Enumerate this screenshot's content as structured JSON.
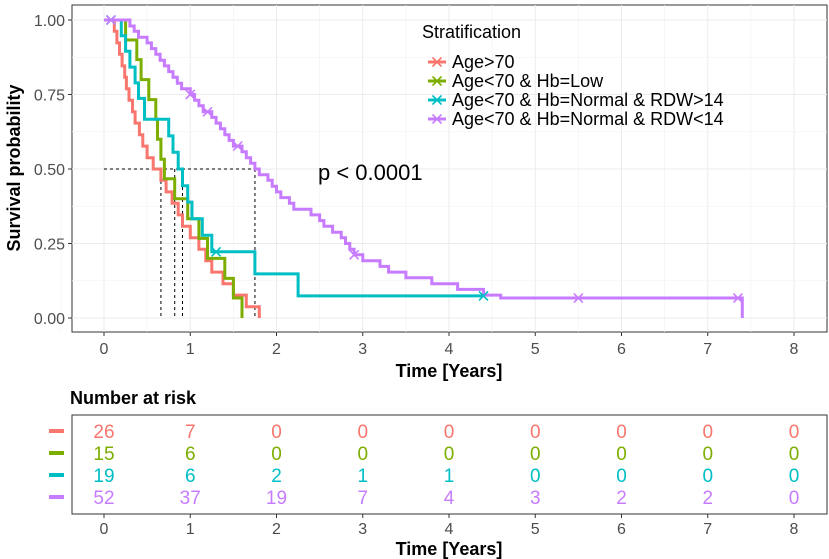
{
  "chart_data": [
    {
      "type": "line",
      "subtype": "kaplan-meier",
      "title": "",
      "xlabel": "Time [Years]",
      "ylabel": "Survival probability",
      "xlim": [
        -0.3,
        8.4
      ],
      "ylim": [
        -0.05,
        1.05
      ],
      "x_ticks": [
        "0",
        "1",
        "2",
        "3",
        "4",
        "5",
        "6",
        "7",
        "8"
      ],
      "y_ticks": [
        "0.00",
        "0.25",
        "0.50",
        "0.75",
        "1.00"
      ],
      "grid": true,
      "legend_title": "Stratification",
      "legend_position": "top-right",
      "annotation": "p < 0.0001",
      "median_line_y": 0.5,
      "median_times": [
        0.66,
        0.82,
        0.91,
        1.75
      ],
      "series": [
        {
          "name": "Age>70",
          "color": "#F8766D",
          "steps": [
            [
              0,
              1.0
            ],
            [
              0.12,
              0.962
            ],
            [
              0.15,
              0.923
            ],
            [
              0.18,
              0.885
            ],
            [
              0.21,
              0.846
            ],
            [
              0.24,
              0.808
            ],
            [
              0.26,
              0.769
            ],
            [
              0.29,
              0.731
            ],
            [
              0.33,
              0.692
            ],
            [
              0.36,
              0.654
            ],
            [
              0.41,
              0.615
            ],
            [
              0.45,
              0.577
            ],
            [
              0.5,
              0.538
            ],
            [
              0.57,
              0.5
            ],
            [
              0.66,
              0.462
            ],
            [
              0.72,
              0.423
            ],
            [
              0.79,
              0.385
            ],
            [
              0.86,
              0.346
            ],
            [
              0.91,
              0.308
            ],
            [
              1.0,
              0.269
            ],
            [
              1.1,
              0.231
            ],
            [
              1.18,
              0.192
            ],
            [
              1.25,
              0.154
            ],
            [
              1.38,
              0.115
            ],
            [
              1.5,
              0.077
            ],
            [
              1.65,
              0.038
            ],
            [
              1.8,
              0.0
            ]
          ],
          "censor_x": []
        },
        {
          "name": "Age<70 & Hb=Low",
          "color": "#7CAE00",
          "steps": [
            [
              0,
              1.0
            ],
            [
              0.25,
              0.933
            ],
            [
              0.38,
              0.867
            ],
            [
              0.43,
              0.8
            ],
            [
              0.52,
              0.733
            ],
            [
              0.6,
              0.667
            ],
            [
              0.62,
              0.6
            ],
            [
              0.66,
              0.533
            ],
            [
              0.7,
              0.467
            ],
            [
              0.82,
              0.4
            ],
            [
              0.97,
              0.333
            ],
            [
              1.1,
              0.267
            ],
            [
              1.2,
              0.2
            ],
            [
              1.4,
              0.133
            ],
            [
              1.5,
              0.067
            ],
            [
              1.6,
              0.0
            ]
          ],
          "censor_x": []
        },
        {
          "name": "Age<70 & Hb=Normal & RDW>14",
          "color": "#00BFC4",
          "steps": [
            [
              0,
              1.0
            ],
            [
              0.2,
              0.947
            ],
            [
              0.25,
              0.895
            ],
            [
              0.3,
              0.842
            ],
            [
              0.36,
              0.789
            ],
            [
              0.4,
              0.737
            ],
            [
              0.47,
              0.667
            ],
            [
              0.62,
              0.667
            ],
            [
              0.75,
              0.611
            ],
            [
              0.8,
              0.556
            ],
            [
              0.86,
              0.5
            ],
            [
              0.91,
              0.444
            ],
            [
              0.97,
              0.389
            ],
            [
              1.02,
              0.333
            ],
            [
              1.14,
              0.278
            ],
            [
              1.25,
              0.222
            ],
            [
              1.75,
              0.148
            ],
            [
              2.25,
              0.074
            ],
            [
              4.4,
              0.074
            ]
          ],
          "censor_x": [
            0.08,
            1.3,
            4.4
          ]
        },
        {
          "name": "Age<70 & Hb=Normal & RDW<14",
          "color": "#C77CFF",
          "steps": [
            [
              0,
              1.0
            ],
            [
              0.3,
              0.98
            ],
            [
              0.35,
              0.962
            ],
            [
              0.4,
              0.942
            ],
            [
              0.5,
              0.923
            ],
            [
              0.55,
              0.904
            ],
            [
              0.6,
              0.885
            ],
            [
              0.65,
              0.865
            ],
            [
              0.7,
              0.846
            ],
            [
              0.75,
              0.827
            ],
            [
              0.8,
              0.808
            ],
            [
              0.85,
              0.788
            ],
            [
              0.9,
              0.769
            ],
            [
              1.0,
              0.75
            ],
            [
              1.05,
              0.731
            ],
            [
              1.1,
              0.712
            ],
            [
              1.15,
              0.692
            ],
            [
              1.25,
              0.673
            ],
            [
              1.3,
              0.654
            ],
            [
              1.35,
              0.635
            ],
            [
              1.4,
              0.615
            ],
            [
              1.45,
              0.596
            ],
            [
              1.5,
              0.577
            ],
            [
              1.6,
              0.558
            ],
            [
              1.65,
              0.538
            ],
            [
              1.7,
              0.519
            ],
            [
              1.75,
              0.5
            ],
            [
              1.8,
              0.481
            ],
            [
              1.9,
              0.462
            ],
            [
              1.95,
              0.442
            ],
            [
              2.0,
              0.423
            ],
            [
              2.05,
              0.404
            ],
            [
              2.15,
              0.385
            ],
            [
              2.2,
              0.365
            ],
            [
              2.4,
              0.346
            ],
            [
              2.5,
              0.327
            ],
            [
              2.55,
              0.308
            ],
            [
              2.65,
              0.288
            ],
            [
              2.75,
              0.269
            ],
            [
              2.8,
              0.25
            ],
            [
              2.85,
              0.231
            ],
            [
              2.9,
              0.212
            ],
            [
              3.0,
              0.192
            ],
            [
              3.2,
              0.173
            ],
            [
              3.3,
              0.154
            ],
            [
              3.5,
              0.135
            ],
            [
              3.8,
              0.115
            ],
            [
              4.1,
              0.096
            ],
            [
              4.4,
              0.077
            ],
            [
              4.6,
              0.067
            ],
            [
              7.4,
              0.067
            ],
            [
              7.4,
              0.0
            ]
          ],
          "censor_x": [
            0.08,
            1.0,
            1.2,
            1.55,
            2.9,
            5.5,
            7.35
          ]
        }
      ]
    },
    {
      "type": "table",
      "title": "Number at risk",
      "xlabel": "Time [Years]",
      "x_ticks": [
        "0",
        "1",
        "2",
        "3",
        "4",
        "5",
        "6",
        "7",
        "8"
      ],
      "rows": [
        {
          "name": "Age>70",
          "color": "#F8766D",
          "values": [
            "26",
            "7",
            "0",
            "0",
            "0",
            "0",
            "0",
            "0",
            "0"
          ]
        },
        {
          "name": "Age<70 & Hb=Low",
          "color": "#7CAE00",
          "values": [
            "15",
            "6",
            "0",
            "0",
            "0",
            "0",
            "0",
            "0",
            "0"
          ]
        },
        {
          "name": "Age<70 & Hb=Normal & RDW>14",
          "color": "#00BFC4",
          "values": [
            "19",
            "6",
            "2",
            "1",
            "1",
            "0",
            "0",
            "0",
            "0"
          ]
        },
        {
          "name": "Age<70 & Hb=Normal & RDW<14",
          "color": "#C77CFF",
          "values": [
            "52",
            "37",
            "19",
            "7",
            "4",
            "3",
            "2",
            "2",
            "0"
          ]
        }
      ]
    }
  ]
}
